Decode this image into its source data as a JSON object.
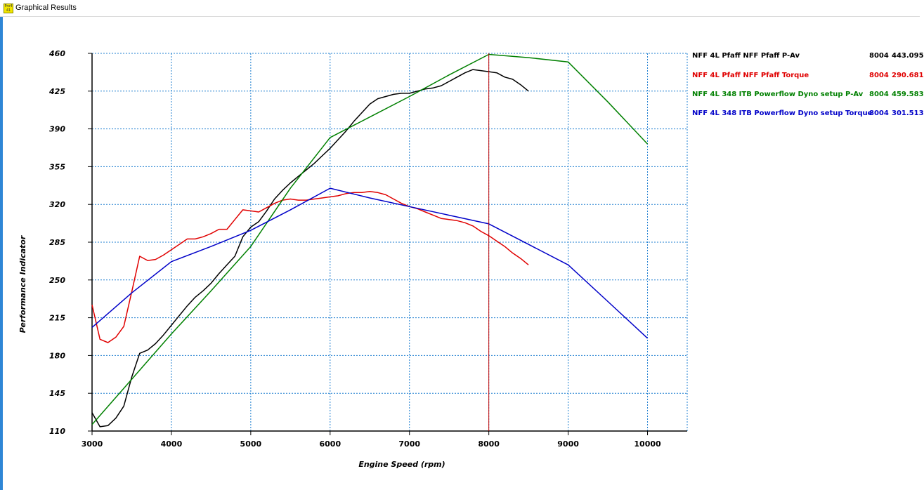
{
  "window": {
    "title": "Graphical Results",
    "icon_name": "app-icon",
    "icon_text": "Pro4 41"
  },
  "chart_data": {
    "type": "line",
    "title": "",
    "xlabel": "Engine Speed (rpm)",
    "ylabel": "Performance Indicator",
    "xlim": [
      3000,
      10500
    ],
    "ylim": [
      110,
      460
    ],
    "xticks": [
      3000,
      4000,
      5000,
      6000,
      7000,
      8000,
      9000,
      10000
    ],
    "yticks": [
      110,
      145,
      180,
      215,
      250,
      285,
      320,
      355,
      390,
      425,
      460
    ],
    "grid": true,
    "cursor": {
      "x": 8000,
      "color": "#c00000"
    },
    "series": [
      {
        "name": "NFF 4L Pfaff NFF Pfaff  P-Av",
        "color": "#000000",
        "rpm": "8004",
        "value": "443.095",
        "x": [
          3000,
          3100,
          3200,
          3300,
          3400,
          3500,
          3600,
          3700,
          3800,
          3900,
          4000,
          4100,
          4200,
          4300,
          4400,
          4500,
          4600,
          4700,
          4800,
          4900,
          5000,
          5100,
          5200,
          5300,
          5400,
          5500,
          5600,
          5700,
          5800,
          5900,
          6000,
          6100,
          6200,
          6300,
          6400,
          6500,
          6600,
          6700,
          6800,
          6900,
          7000,
          7100,
          7200,
          7300,
          7400,
          7500,
          7600,
          7700,
          7800,
          7900,
          8000,
          8100,
          8200,
          8300,
          8400,
          8500
        ],
        "y": [
          127,
          114,
          115,
          122,
          133,
          160,
          182,
          185,
          191,
          199,
          208,
          217,
          226,
          234,
          240,
          247,
          256,
          264,
          272,
          290,
          299,
          304,
          314,
          325,
          333,
          340,
          346,
          352,
          358,
          365,
          372,
          380,
          388,
          397,
          405,
          413,
          418,
          420,
          422,
          423,
          423,
          425,
          427,
          428,
          430,
          434,
          438,
          442,
          445,
          444,
          443,
          442,
          438,
          436,
          431,
          425
        ]
      },
      {
        "name": "NFF 4L Pfaff NFF Pfaff  Torque",
        "color": "#e00000",
        "rpm": "8004",
        "value": "290.681",
        "x": [
          3000,
          3100,
          3200,
          3300,
          3400,
          3500,
          3600,
          3700,
          3800,
          3900,
          4000,
          4100,
          4200,
          4300,
          4400,
          4500,
          4600,
          4700,
          4800,
          4900,
          5000,
          5100,
          5200,
          5300,
          5400,
          5500,
          5600,
          5700,
          5800,
          5900,
          6000,
          6100,
          6200,
          6300,
          6400,
          6500,
          6600,
          6700,
          6800,
          6900,
          7000,
          7100,
          7200,
          7300,
          7400,
          7500,
          7600,
          7700,
          7800,
          7900,
          8000,
          8100,
          8200,
          8300,
          8400,
          8500
        ],
        "y": [
          227,
          195,
          192,
          197,
          207,
          239,
          272,
          268,
          269,
          273,
          278,
          283,
          288,
          288,
          290,
          293,
          297,
          297,
          306,
          315,
          314,
          313,
          317,
          321,
          324,
          325,
          324,
          324,
          325,
          326,
          327,
          328,
          330,
          331,
          331,
          332,
          331,
          329,
          325,
          321,
          318,
          316,
          313,
          310,
          307,
          306,
          305,
          303,
          300,
          295,
          291,
          286,
          281,
          275,
          270,
          264
        ]
      },
      {
        "name": "NFF 4L 348 ITB Powerflow Dyno setup  P-Av",
        "color": "#008000",
        "rpm": "8004",
        "value": "459.583",
        "x": [
          3000,
          3500,
          4000,
          4500,
          5000,
          5500,
          6000,
          6500,
          7000,
          7500,
          8000,
          8500,
          9000,
          9500,
          10000
        ],
        "y": [
          116,
          158,
          200,
          240,
          281,
          335,
          382,
          401,
          420,
          440,
          459,
          456,
          452,
          415,
          376
        ]
      },
      {
        "name": "NFF 4L 348 ITB Powerflow Dyno setup  Torque",
        "color": "#0000c8",
        "rpm": "8004",
        "value": "301.513",
        "x": [
          3000,
          3500,
          4000,
          4500,
          5000,
          5500,
          6000,
          6500,
          7000,
          7500,
          8000,
          8500,
          9000,
          9500,
          10000
        ],
        "y": [
          206,
          238,
          267,
          281,
          296,
          315,
          335,
          326,
          318,
          310,
          302,
          283,
          264,
          230,
          196
        ]
      }
    ]
  }
}
